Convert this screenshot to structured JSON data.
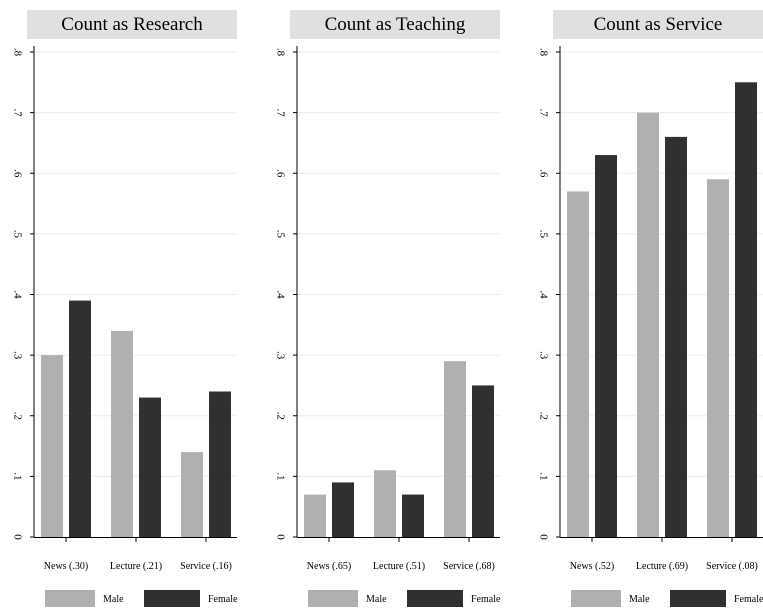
{
  "chart_data": [
    {
      "type": "bar",
      "title": "Count as Research",
      "categories": [
        "News (.30)",
        "Lecture (.21)",
        "Service (.16)"
      ],
      "series": [
        {
          "name": "Male",
          "values": [
            0.3,
            0.34,
            0.14
          ],
          "color": "#b0b0b0"
        },
        {
          "name": "Female",
          "values": [
            0.39,
            0.23,
            0.24
          ],
          "color": "#303030"
        }
      ],
      "ylim": [
        0,
        0.8
      ],
      "yticks": [
        "0",
        ".1",
        ".2",
        ".3",
        ".4",
        ".5",
        ".6",
        ".7",
        ".8"
      ],
      "grid": true,
      "legend": "bottom"
    },
    {
      "type": "bar",
      "title": "Count as Teaching",
      "categories": [
        "News (.65)",
        "Lecture (.51)",
        "Service (.68)"
      ],
      "series": [
        {
          "name": "Male",
          "values": [
            0.07,
            0.11,
            0.29
          ],
          "color": "#b0b0b0"
        },
        {
          "name": "Female",
          "values": [
            0.09,
            0.07,
            0.25
          ],
          "color": "#303030"
        }
      ],
      "ylim": [
        0,
        0.8
      ],
      "yticks": [
        "0",
        ".1",
        ".2",
        ".3",
        ".4",
        ".5",
        ".6",
        ".7",
        ".8"
      ],
      "grid": true,
      "legend": "bottom"
    },
    {
      "type": "bar",
      "title": "Count as Service",
      "categories": [
        "News (.52)",
        "Lecture (.69)",
        "Service (.08)"
      ],
      "series": [
        {
          "name": "Male",
          "values": [
            0.57,
            0.7,
            0.59
          ],
          "color": "#b0b0b0"
        },
        {
          "name": "Female",
          "values": [
            0.63,
            0.66,
            0.75
          ],
          "color": "#303030"
        }
      ],
      "ylim": [
        0,
        0.8
      ],
      "yticks": [
        "0",
        ".1",
        ".2",
        ".3",
        ".4",
        ".5",
        ".6",
        ".7",
        ".8"
      ],
      "grid": true,
      "legend": "bottom"
    }
  ]
}
